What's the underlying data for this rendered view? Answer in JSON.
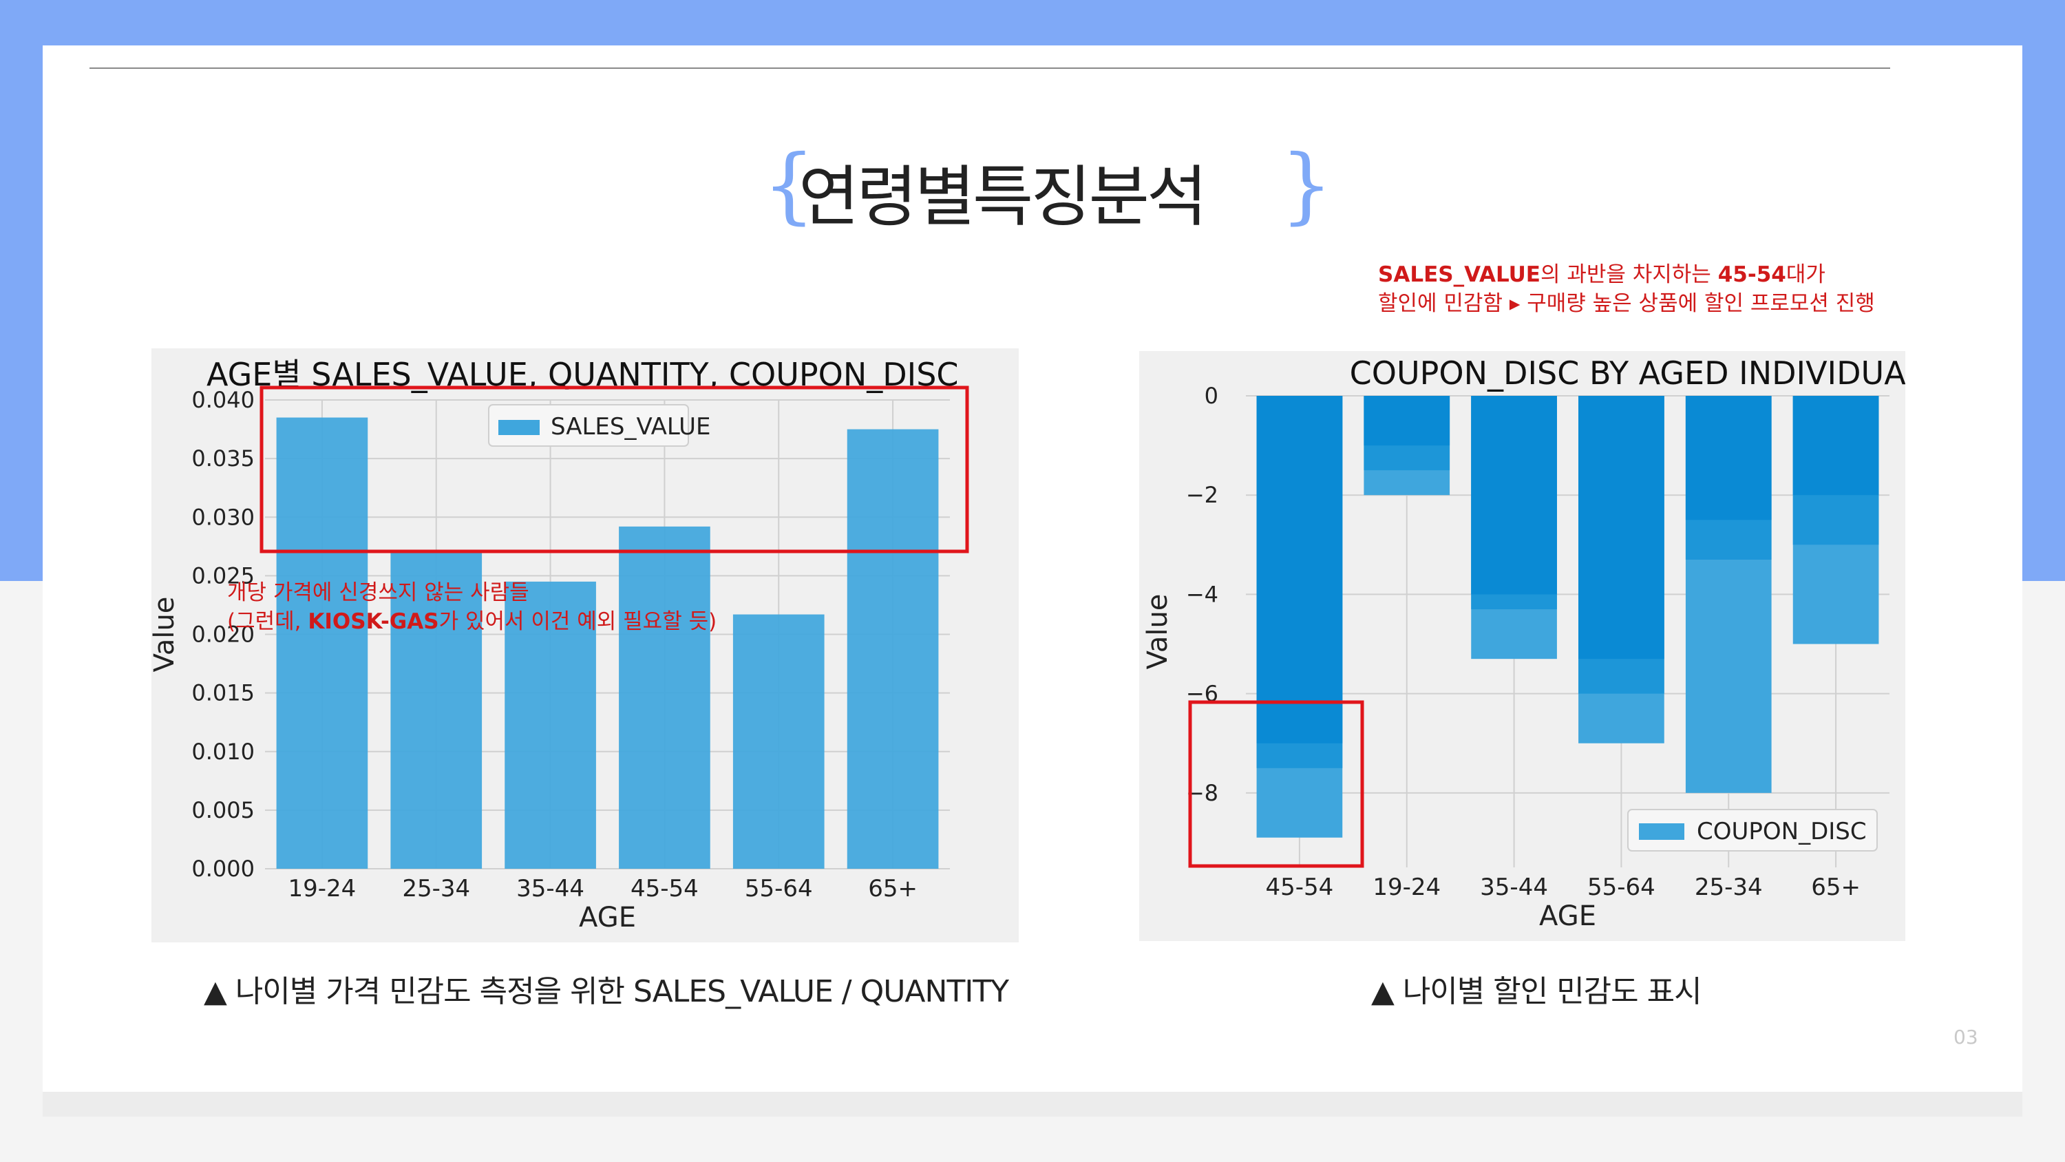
{
  "slide": {
    "title": "연령별특징분석",
    "page_number": "03",
    "caption_left": "▲ 나이별 가격 민감도 측정을 위한 SALES_VALUE / QUANTITY",
    "caption_right": "▲ 나이별 할인 민감도 표시",
    "note_top_right": {
      "line1_b1": "SALES_VALUE",
      "line1_t1": "의 과반을 차지하는 ",
      "line1_b2": "45-54",
      "line1_t2": "대가",
      "line2": "할인에 민감함 ▸ 구매량 높은 상품에 할인 프로모션 진행"
    },
    "note_left": {
      "line1": "개당 가격에 신경쓰지 않는 사람들",
      "line2_t1": "(그런데, ",
      "line2_b": "KIOSK-GAS",
      "line2_t2": "가 있어서 이건 예외 필요할 듯)"
    },
    "colors": {
      "bar": "#3fa6dd",
      "bar_dark": "#0a8ad4",
      "annotation": "#e0151b",
      "accent": "#7fa9f7"
    }
  },
  "chart_data": [
    {
      "type": "bar",
      "title": "AGE별 SALES_VALUE, QUANTITY, COUPON_DISC",
      "xlabel": "AGE",
      "ylabel": "Value",
      "categories": [
        "19-24",
        "25-34",
        "35-44",
        "45-54",
        "55-64",
        "65+"
      ],
      "series": [
        {
          "name": "SALES_VALUE",
          "values": [
            0.0385,
            0.027,
            0.0245,
            0.0292,
            0.0217,
            0.0375
          ]
        }
      ],
      "yticks": [
        "0.000",
        "0.005",
        "0.010",
        "0.015",
        "0.020",
        "0.025",
        "0.030",
        "0.035",
        "0.040"
      ],
      "ylim": [
        0,
        0.04
      ],
      "grid": true,
      "legend": "top-center"
    },
    {
      "type": "bar",
      "title": "COUPON_DISC BY AGED INDIVIDUAL",
      "xlabel": "AGE",
      "ylabel": "Value",
      "categories": [
        "45-54",
        "19-24",
        "35-44",
        "55-64",
        "25-34",
        "65+"
      ],
      "series": [
        {
          "name": "COUPON_DISC",
          "values": [
            -8.9,
            -2.0,
            -5.3,
            -7.0,
            -8.0,
            -5.0
          ]
        }
      ],
      "stacked_levels": [
        [
          -7.0,
          -7.5
        ],
        [
          -1.0,
          -1.5
        ],
        [
          -4.0,
          -4.3
        ],
        [
          -5.3,
          -6.0
        ],
        [
          -2.5,
          -3.3
        ],
        [
          -2.0,
          -3.0
        ]
      ],
      "yticks": [
        "0",
        "−2",
        "−4",
        "−6",
        "−8"
      ],
      "ylim": [
        -9.5,
        0
      ],
      "grid": true,
      "legend": "bottom-right"
    }
  ]
}
